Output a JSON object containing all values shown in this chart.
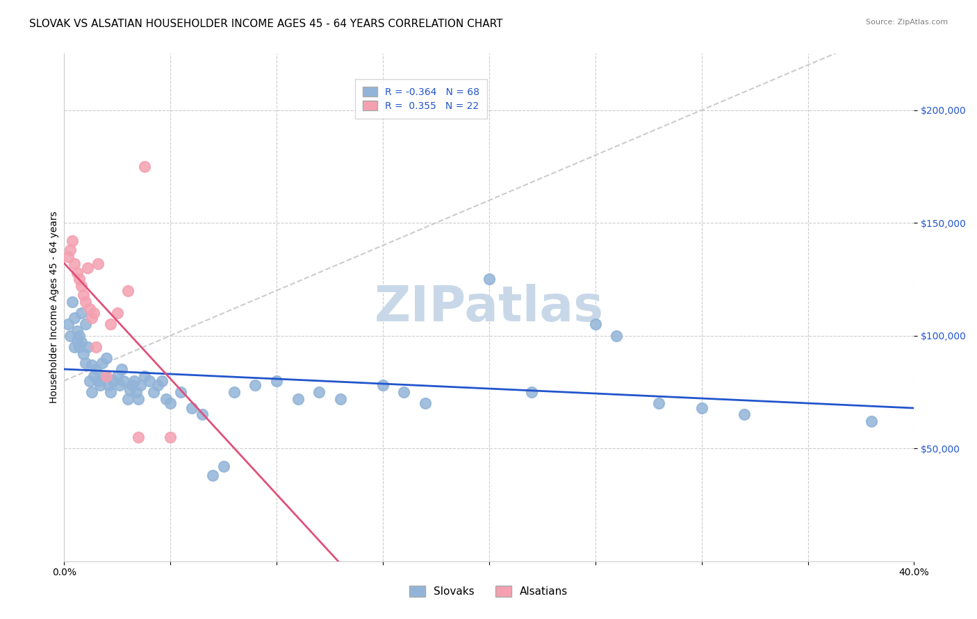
{
  "title": "SLOVAK VS ALSATIAN HOUSEHOLDER INCOME AGES 45 - 64 YEARS CORRELATION CHART",
  "source": "Source: ZipAtlas.com",
  "xlabel": "",
  "ylabel": "Householder Income Ages 45 - 64 years",
  "xlim": [
    0.0,
    0.4
  ],
  "ylim": [
    0,
    225000
  ],
  "xticks": [
    0.0,
    0.05,
    0.1,
    0.15,
    0.2,
    0.25,
    0.3,
    0.35,
    0.4
  ],
  "xticklabels": [
    "0.0%",
    "",
    "",
    "",
    "",
    "",
    "",
    "",
    "40.0%"
  ],
  "ytick_positions": [
    50000,
    100000,
    150000,
    200000
  ],
  "ytick_labels": [
    "$50,000",
    "$100,000",
    "$150,000",
    "$200,000"
  ],
  "legend_R_blue": "-0.364",
  "legend_N_blue": "68",
  "legend_R_pink": "0.355",
  "legend_N_pink": "22",
  "blue_color": "#92b4d8",
  "pink_color": "#f4a0b0",
  "trendline_blue_color": "#2255cc",
  "trendline_pink_color": "#e0507a",
  "trendline_dashed_color": "#cccccc",
  "watermark_text": "ZIPatlas",
  "watermark_color": "#c8d8e8",
  "slovak_x": [
    0.002,
    0.003,
    0.004,
    0.005,
    0.005,
    0.006,
    0.006,
    0.007,
    0.007,
    0.008,
    0.008,
    0.009,
    0.01,
    0.01,
    0.011,
    0.012,
    0.013,
    0.013,
    0.014,
    0.015,
    0.016,
    0.017,
    0.018,
    0.019,
    0.02,
    0.021,
    0.022,
    0.023,
    0.025,
    0.026,
    0.027,
    0.028,
    0.03,
    0.031,
    0.032,
    0.033,
    0.034,
    0.035,
    0.036,
    0.038,
    0.04,
    0.042,
    0.044,
    0.046,
    0.048,
    0.05,
    0.055,
    0.06,
    0.065,
    0.07,
    0.075,
    0.08,
    0.09,
    0.1,
    0.11,
    0.12,
    0.13,
    0.15,
    0.16,
    0.17,
    0.2,
    0.22,
    0.25,
    0.26,
    0.28,
    0.3,
    0.32,
    0.38
  ],
  "slovak_y": [
    105000,
    100000,
    115000,
    108000,
    95000,
    102000,
    98000,
    100000,
    95000,
    97000,
    110000,
    92000,
    105000,
    88000,
    95000,
    80000,
    87000,
    75000,
    82000,
    85000,
    80000,
    78000,
    88000,
    82000,
    90000,
    78000,
    75000,
    80000,
    82000,
    78000,
    85000,
    80000,
    72000,
    76000,
    78000,
    80000,
    75000,
    72000,
    78000,
    82000,
    80000,
    75000,
    78000,
    80000,
    72000,
    70000,
    75000,
    68000,
    65000,
    38000,
    42000,
    75000,
    78000,
    80000,
    72000,
    75000,
    72000,
    78000,
    75000,
    70000,
    125000,
    75000,
    105000,
    100000,
    70000,
    68000,
    65000,
    62000
  ],
  "alsatian_x": [
    0.002,
    0.003,
    0.004,
    0.005,
    0.006,
    0.007,
    0.008,
    0.009,
    0.01,
    0.011,
    0.012,
    0.013,
    0.014,
    0.015,
    0.016,
    0.02,
    0.022,
    0.025,
    0.03,
    0.035,
    0.038,
    0.05
  ],
  "alsatian_y": [
    135000,
    138000,
    142000,
    132000,
    128000,
    125000,
    122000,
    118000,
    115000,
    130000,
    112000,
    108000,
    110000,
    95000,
    132000,
    82000,
    105000,
    110000,
    120000,
    55000,
    175000,
    55000
  ],
  "marker_size": 120,
  "title_fontsize": 11,
  "axis_label_fontsize": 10,
  "tick_fontsize": 10
}
